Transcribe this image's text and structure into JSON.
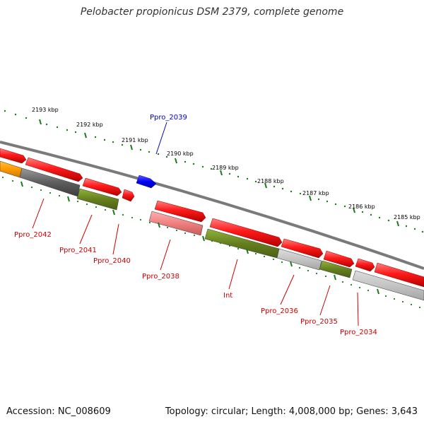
{
  "title": "Pelobacter propionicus DSM 2379, complete genome",
  "footer": {
    "accession": "Accession: NC_008609",
    "stats": "Topology: circular; Length: 4,008,000 bp; Genes: 3,643"
  },
  "colors": {
    "forward_gene": "#ff1a1a",
    "reverse_gene": "#0000ff",
    "ncrna": "#ff9900",
    "tick": "#1a7a1a",
    "label_forward": "#cc0000",
    "label_reverse": "#0000cc",
    "backbone": "#7a7a7a"
  },
  "scale_ticks": [
    "2193 kbp",
    "2192 kbp",
    "2191 kbp",
    "2190 kbp",
    "2189 kbp",
    "2188 kbp",
    "2187 kbp",
    "2186 kbp",
    "2185 kbp"
  ],
  "gene_labels": [
    {
      "name": "Ppro_2039",
      "strand": "reverse"
    },
    {
      "name": "Ppro_2042",
      "strand": "forward"
    },
    {
      "name": "Ppro_2041",
      "strand": "forward"
    },
    {
      "name": "Ppro_2040",
      "strand": "forward"
    },
    {
      "name": "Ppro_2038",
      "strand": "forward"
    },
    {
      "name": "Int",
      "strand": "forward"
    },
    {
      "name": "Ppro_2036",
      "strand": "forward"
    },
    {
      "name": "Ppro_2035",
      "strand": "forward"
    },
    {
      "name": "Ppro_2034",
      "strand": "forward"
    }
  ]
}
